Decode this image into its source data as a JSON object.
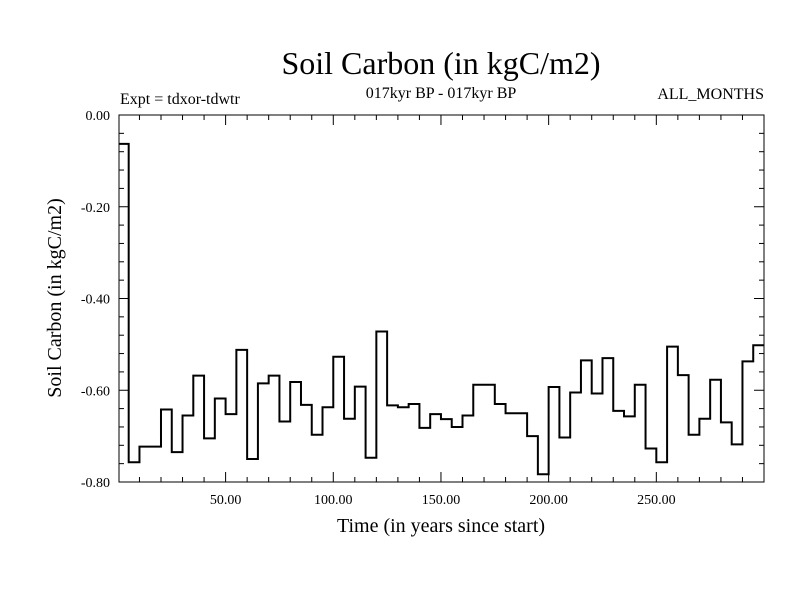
{
  "chart_data": {
    "type": "line",
    "title": "Soil Carbon (in kgC/m2)",
    "subtitle": "017kyr BP - 017kyr BP",
    "experiment_label": "Expt = tdxor-tdwtr",
    "period_label": "ALL_MONTHS",
    "xlabel": "Time (in years since start)",
    "ylabel": "Soil Carbon (in kgC/m2)",
    "xlim": [
      0.5,
      300
    ],
    "ylim": [
      -0.8,
      0.0
    ],
    "x_ticks": [
      50,
      100,
      150,
      200,
      250
    ],
    "x_tick_labels": [
      "50.00",
      "100.00",
      "150.00",
      "200.00",
      "250.00"
    ],
    "y_ticks": [
      0.0,
      -0.2,
      -0.4,
      -0.6,
      -0.8
    ],
    "y_tick_labels": [
      "0.00",
      "-0.20",
      "-0.40",
      "-0.60",
      "-0.80"
    ],
    "step_width_years": 5,
    "series": [
      {
        "style": "step",
        "x": [
          0.5,
          5,
          10,
          15,
          20,
          25,
          30,
          35,
          40,
          45,
          50,
          55,
          60,
          65,
          70,
          75,
          80,
          85,
          90,
          95,
          100,
          105,
          110,
          115,
          120,
          125,
          130,
          135,
          140,
          145,
          150,
          155,
          160,
          165,
          170,
          175,
          180,
          185,
          190,
          195,
          200,
          205,
          210,
          215,
          220,
          225,
          230,
          235,
          240,
          245,
          250,
          255,
          260,
          265,
          270,
          275,
          280,
          285,
          290,
          295
        ],
        "values": [
          -0.063,
          -0.757,
          -0.723,
          -0.723,
          -0.642,
          -0.735,
          -0.655,
          -0.568,
          -0.705,
          -0.618,
          -0.652,
          -0.512,
          -0.75,
          -0.585,
          -0.568,
          -0.668,
          -0.582,
          -0.632,
          -0.697,
          -0.637,
          -0.527,
          -0.662,
          -0.592,
          -0.747,
          -0.472,
          -0.633,
          -0.637,
          -0.63,
          -0.682,
          -0.652,
          -0.663,
          -0.68,
          -0.655,
          -0.588,
          -0.588,
          -0.63,
          -0.65,
          -0.65,
          -0.7,
          -0.783,
          -0.593,
          -0.703,
          -0.605,
          -0.535,
          -0.607,
          -0.53,
          -0.645,
          -0.657,
          -0.588,
          -0.727,
          -0.757,
          -0.505,
          -0.567,
          -0.697,
          -0.662,
          -0.577,
          -0.67,
          -0.718,
          -0.537,
          -0.502
        ],
        "x_end": 300
      }
    ]
  }
}
